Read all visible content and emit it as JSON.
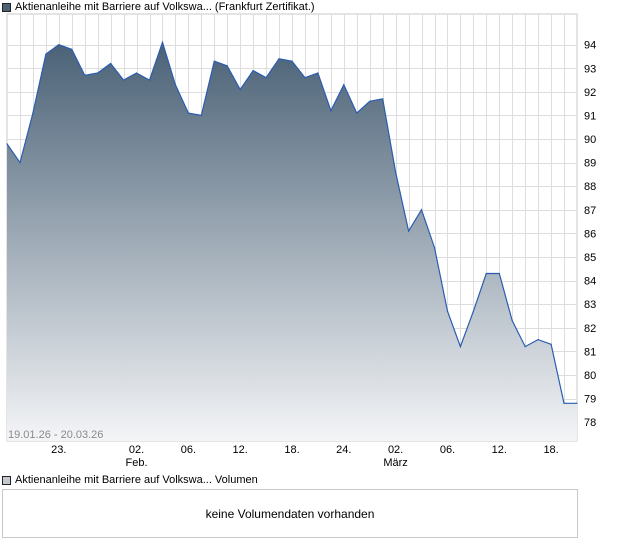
{
  "legend_price": "Aktienanleihe mit Barriere auf Volkswa... (Frankfurt Zertifikat.)",
  "legend_volume": "Aktienanleihe mit Barriere auf Volkswa... Volumen",
  "volume_message": "keine Volumendaten vorhanden",
  "date_range_label": "19.01.26 - 20.03.26",
  "colors": {
    "line": "#2a5db0",
    "fill_top": "#4a6176",
    "fill_bottom": "#f4f5f7",
    "grid": "#dddddd"
  },
  "chart_data": {
    "type": "area",
    "y_ticks": [
      78,
      79,
      80,
      81,
      82,
      83,
      84,
      85,
      86,
      87,
      88,
      89,
      90,
      91,
      92,
      93,
      94
    ],
    "ylim": [
      77.2,
      95.3
    ],
    "x_ticks": [
      {
        "label": "23.",
        "sub": ""
      },
      {
        "label": "02.",
        "sub": "Feb."
      },
      {
        "label": "06.",
        "sub": ""
      },
      {
        "label": "12.",
        "sub": ""
      },
      {
        "label": "18.",
        "sub": ""
      },
      {
        "label": "24.",
        "sub": ""
      },
      {
        "label": "02.",
        "sub": "März"
      },
      {
        "label": "06.",
        "sub": ""
      },
      {
        "label": "12.",
        "sub": ""
      },
      {
        "label": "18.",
        "sub": ""
      }
    ],
    "x_tick_index": [
      4,
      10,
      14,
      18,
      22,
      26,
      30,
      34,
      38,
      42
    ],
    "grid": true,
    "series": [
      {
        "values": [
          89.8,
          89.0,
          91.1,
          93.6,
          94.0,
          93.8,
          92.7,
          92.8,
          93.2,
          92.5,
          92.8,
          92.5,
          94.1,
          92.3,
          91.1,
          91.0,
          93.3,
          93.1,
          92.1,
          92.9,
          92.6,
          93.4,
          93.3,
          92.6,
          92.8,
          91.2,
          92.3,
          91.1,
          91.6,
          91.7,
          88.6,
          86.1,
          87.0,
          85.4,
          82.7,
          81.2,
          82.7,
          84.3,
          84.3,
          82.3,
          81.2,
          81.5,
          81.3,
          78.8,
          78.8
        ]
      }
    ]
  }
}
